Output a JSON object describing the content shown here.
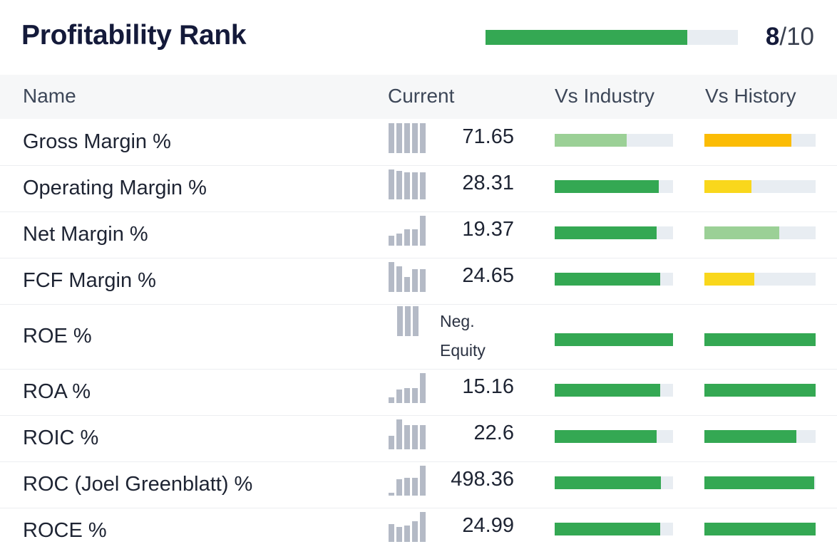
{
  "header": {
    "title": "Profitability Rank",
    "rank_fraction": 0.8,
    "rank_value": "8",
    "rank_max": "/10"
  },
  "table": {
    "columns": [
      "Name",
      "Current",
      "Vs Industry",
      "Vs History"
    ],
    "rows": [
      {
        "name": "Gross Margin %",
        "value": "71.65",
        "spark": [
          1,
          1,
          1,
          1,
          1
        ],
        "industry": 0.61,
        "industry_color": "#9bd096",
        "history": 0.78,
        "history_color": "#fbbc05"
      },
      {
        "name": "Operating Margin %",
        "value": "28.31",
        "spark": [
          1,
          0.95,
          0.9,
          0.9,
          0.9
        ],
        "industry": 0.88,
        "industry_color": "#34a853",
        "history": 0.42,
        "history_color": "#f9d71c"
      },
      {
        "name": "Net Margin %",
        "value": "19.37",
        "spark": [
          0.33,
          0.4,
          0.55,
          0.55,
          1
        ],
        "industry": 0.86,
        "industry_color": "#34a853",
        "history": 0.67,
        "history_color": "#9bd096"
      },
      {
        "name": "FCF Margin %",
        "value": "24.65",
        "spark": [
          1,
          0.85,
          0.5,
          0.75,
          0.75
        ],
        "industry": 0.89,
        "industry_color": "#34a853",
        "history": 0.45,
        "history_color": "#f9d71c"
      },
      {
        "name": "ROE %",
        "value_lines": [
          "Neg.",
          "Equity"
        ],
        "spark": [
          1,
          1,
          1
        ],
        "industry": 1.0,
        "industry_color": "#34a853",
        "history": 1.0,
        "history_color": "#34a853"
      },
      {
        "name": "ROA %",
        "value": "15.16",
        "spark": [
          0.2,
          0.45,
          0.5,
          0.5,
          1
        ],
        "industry": 0.89,
        "industry_color": "#34a853",
        "history": 1.0,
        "history_color": "#34a853"
      },
      {
        "name": "ROIC %",
        "value": "22.6",
        "spark": [
          0.45,
          1,
          0.8,
          0.8,
          0.8
        ],
        "industry": 0.86,
        "industry_color": "#34a853",
        "history": 0.83,
        "history_color": "#34a853"
      },
      {
        "name": "ROC (Joel Greenblatt) %",
        "value": "498.36",
        "spark": [
          0.1,
          0.55,
          0.6,
          0.6,
          1
        ],
        "industry": 0.9,
        "industry_color": "#34a853",
        "history": 0.99,
        "history_color": "#34a853"
      },
      {
        "name": "ROCE %",
        "value": "24.99",
        "spark": [
          0.6,
          0.5,
          0.55,
          0.7,
          1
        ],
        "industry": 0.89,
        "industry_color": "#34a853",
        "history": 1.0,
        "history_color": "#34a853"
      }
    ]
  }
}
